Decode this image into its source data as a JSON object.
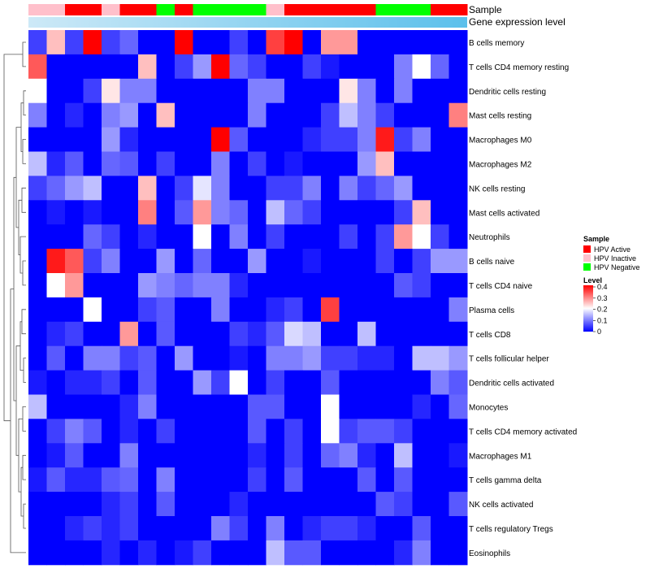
{
  "chart_data": {
    "type": "heatmap",
    "annotation_labels": [
      "Sample",
      "Gene expression level"
    ],
    "row_labels": [
      "B cells memory",
      "T cells CD4 memory resting",
      "Dendritic cells resting",
      "Mast cells resting",
      "Macrophages M0",
      "Macrophages M2",
      "NK cells resting",
      "Mast cells activated",
      "Neutrophils",
      "B cells naive",
      "T cells CD4 naive",
      "Plasma cells",
      "T cells CD8",
      "T cells follicular helper",
      "Dendritic cells activated",
      "Monocytes",
      "T cells CD4 memory activated",
      "Macrophages M1",
      "T cells gamma delta",
      "NK cells activated",
      "T cells regulatory  Tregs",
      "Eosinophils"
    ],
    "sample_groups": [
      "HPV Inactive",
      "HPV Inactive",
      "HPV Active",
      "HPV Active",
      "HPV Inactive",
      "HPV Active",
      "HPV Active",
      "HPV Negative",
      "HPV Active",
      "HPV Negative",
      "HPV Negative",
      "HPV Negative",
      "HPV Negative",
      "HPV Inactive",
      "HPV Active",
      "HPV Active",
      "HPV Active",
      "HPV Active",
      "HPV Active",
      "HPV Negative",
      "HPV Negative",
      "HPV Negative",
      "HPV Active",
      "HPV Active"
    ],
    "values": [
      [
        0.05,
        0.25,
        0.05,
        0.4,
        0.05,
        0.08,
        0.0,
        0.0,
        0.4,
        0.0,
        0.0,
        0.05,
        0.0,
        0.35,
        0.4,
        0.0,
        0.28,
        0.28,
        0.0,
        0.0,
        0.0,
        0.0,
        0.0,
        0.0
      ],
      [
        0.33,
        0.0,
        0.0,
        0.0,
        0.0,
        0.0,
        0.25,
        0.0,
        0.05,
        0.12,
        0.4,
        0.08,
        0.05,
        0.0,
        0.0,
        0.05,
        0.02,
        0.0,
        0.0,
        0.0,
        0.1,
        0.2,
        0.08,
        0.0
      ],
      [
        0.2,
        0.0,
        0.0,
        0.05,
        0.22,
        0.1,
        0.1,
        0.0,
        0.0,
        0.0,
        0.0,
        0.0,
        0.1,
        0.1,
        0.0,
        0.0,
        0.0,
        0.22,
        0.1,
        0.0,
        0.1,
        0.0,
        0.0,
        0.0
      ],
      [
        0.1,
        0.0,
        0.03,
        0.0,
        0.1,
        0.12,
        0.0,
        0.25,
        0.0,
        0.0,
        0.0,
        0.0,
        0.1,
        0.0,
        0.0,
        0.0,
        0.05,
        0.15,
        0.1,
        0.05,
        0.0,
        0.0,
        0.0,
        0.3
      ],
      [
        0.0,
        0.0,
        0.0,
        0.0,
        0.12,
        0.03,
        0.0,
        0.0,
        0.0,
        0.0,
        0.4,
        0.07,
        0.0,
        0.0,
        0.0,
        0.03,
        0.05,
        0.05,
        0.1,
        0.38,
        0.05,
        0.1,
        0.0,
        0.0
      ],
      [
        0.15,
        0.03,
        0.07,
        0.0,
        0.08,
        0.07,
        0.0,
        0.05,
        0.0,
        0.0,
        0.1,
        0.0,
        0.05,
        0.0,
        0.02,
        0.0,
        0.0,
        0.0,
        0.12,
        0.25,
        0.0,
        0.0,
        0.0,
        0.0
      ],
      [
        0.05,
        0.08,
        0.12,
        0.15,
        0.0,
        0.0,
        0.25,
        0.0,
        0.05,
        0.18,
        0.1,
        0.0,
        0.0,
        0.05,
        0.05,
        0.1,
        0.0,
        0.1,
        0.05,
        0.08,
        0.12,
        0.0,
        0.0,
        0.0
      ],
      [
        0.0,
        0.02,
        0.0,
        0.02,
        0.0,
        0.0,
        0.3,
        0.0,
        0.07,
        0.28,
        0.1,
        0.08,
        0.0,
        0.15,
        0.08,
        0.05,
        0.0,
        0.0,
        0.0,
        0.0,
        0.05,
        0.25,
        0.0,
        0.0
      ],
      [
        0.0,
        0.0,
        0.0,
        0.08,
        0.05,
        0.0,
        0.03,
        0.0,
        0.0,
        0.2,
        0.0,
        0.1,
        0.0,
        0.05,
        0.0,
        0.0,
        0.0,
        0.05,
        0.0,
        0.05,
        0.28,
        0.2,
        0.05,
        0.0
      ],
      [
        0.0,
        0.38,
        0.33,
        0.05,
        0.1,
        0.0,
        0.0,
        0.12,
        0.0,
        0.08,
        0.0,
        0.0,
        0.12,
        0.0,
        0.0,
        0.02,
        0.0,
        0.0,
        0.0,
        0.05,
        0.0,
        0.05,
        0.12,
        0.12
      ],
      [
        0.0,
        0.2,
        0.28,
        0.0,
        0.0,
        0.0,
        0.12,
        0.1,
        0.08,
        0.1,
        0.1,
        0.03,
        0.0,
        0.0,
        0.0,
        0.0,
        0.0,
        0.0,
        0.0,
        0.0,
        0.07,
        0.05,
        0.0,
        0.0
      ],
      [
        0.0,
        0.0,
        0.0,
        0.2,
        0.0,
        0.0,
        0.05,
        0.07,
        0.0,
        0.0,
        0.1,
        0.0,
        0.0,
        0.03,
        0.05,
        0.0,
        0.35,
        0.0,
        0.0,
        0.0,
        0.0,
        0.0,
        0.0,
        0.1
      ],
      [
        0.0,
        0.03,
        0.05,
        0.0,
        0.0,
        0.28,
        0.0,
        0.07,
        0.0,
        0.0,
        0.0,
        0.05,
        0.03,
        0.07,
        0.17,
        0.15,
        0.0,
        0.0,
        0.15,
        0.0,
        0.0,
        0.0,
        0.0,
        0.0
      ],
      [
        0.0,
        0.07,
        0.0,
        0.1,
        0.1,
        0.05,
        0.07,
        0.0,
        0.12,
        0.0,
        0.0,
        0.02,
        0.0,
        0.1,
        0.1,
        0.12,
        0.05,
        0.05,
        0.03,
        0.03,
        0.0,
        0.15,
        0.15,
        0.12
      ],
      [
        0.02,
        0.0,
        0.03,
        0.03,
        0.05,
        0.0,
        0.07,
        0.0,
        0.0,
        0.12,
        0.05,
        0.2,
        0.0,
        0.05,
        0.0,
        0.0,
        0.07,
        0.0,
        0.0,
        0.0,
        0.0,
        0.0,
        0.1,
        0.07
      ],
      [
        0.15,
        0.0,
        0.0,
        0.0,
        0.0,
        0.03,
        0.1,
        0.0,
        0.0,
        0.0,
        0.0,
        0.0,
        0.07,
        0.07,
        0.0,
        0.0,
        0.2,
        0.0,
        0.0,
        0.0,
        0.0,
        0.03,
        0.0,
        0.08
      ],
      [
        0.0,
        0.05,
        0.1,
        0.07,
        0.0,
        0.03,
        0.0,
        0.05,
        0.0,
        0.0,
        0.0,
        0.0,
        0.07,
        0.0,
        0.05,
        0.0,
        0.2,
        0.05,
        0.07,
        0.07,
        0.05,
        0.0,
        0.0,
        0.0
      ],
      [
        0.0,
        0.02,
        0.07,
        0.0,
        0.0,
        0.1,
        0.0,
        0.0,
        0.0,
        0.0,
        0.0,
        0.0,
        0.03,
        0.0,
        0.05,
        0.0,
        0.08,
        0.1,
        0.03,
        0.0,
        0.15,
        0.0,
        0.0,
        0.02
      ],
      [
        0.02,
        0.07,
        0.03,
        0.03,
        0.07,
        0.08,
        0.0,
        0.1,
        0.0,
        0.0,
        0.0,
        0.0,
        0.05,
        0.0,
        0.07,
        0.0,
        0.0,
        0.0,
        0.07,
        0.0,
        0.07,
        0.0,
        0.0,
        0.0
      ],
      [
        0.0,
        0.0,
        0.0,
        0.0,
        0.03,
        0.05,
        0.0,
        0.07,
        0.0,
        0.0,
        0.0,
        0.03,
        0.0,
        0.0,
        0.0,
        0.0,
        0.0,
        0.0,
        0.0,
        0.07,
        0.05,
        0.0,
        0.0,
        0.07
      ],
      [
        0.0,
        0.0,
        0.03,
        0.05,
        0.03,
        0.05,
        0.0,
        0.0,
        0.0,
        0.0,
        0.1,
        0.05,
        0.0,
        0.1,
        0.0,
        0.03,
        0.05,
        0.05,
        0.03,
        0.0,
        0.0,
        0.07,
        0.0,
        0.0
      ],
      [
        0.0,
        0.0,
        0.0,
        0.0,
        0.03,
        0.0,
        0.03,
        0.0,
        0.02,
        0.05,
        0.0,
        0.0,
        0.0,
        0.15,
        0.07,
        0.07,
        0.0,
        0.0,
        0.0,
        0.0,
        0.03,
        0.1,
        0.0,
        0.0
      ]
    ],
    "legend": {
      "sample_title": "Sample",
      "sample_items": [
        {
          "label": "HPV Active",
          "color": "#ff0000"
        },
        {
          "label": "HPV Inactive",
          "color": "#ffc0cb"
        },
        {
          "label": "HPV Negative",
          "color": "#00ff00"
        }
      ],
      "level_title": "Level",
      "level_ticks": [
        "0.4",
        "0.3",
        "0.2",
        "0.1",
        "0"
      ],
      "level_range": [
        0,
        0.4
      ]
    },
    "colors": {
      "low": "#0000ff",
      "mid": "#ffffff",
      "high": "#ff0000",
      "expression_bar_start": "#cde9f7",
      "expression_bar_end": "#5bc0eb",
      "dendrogram": "#555555"
    }
  }
}
